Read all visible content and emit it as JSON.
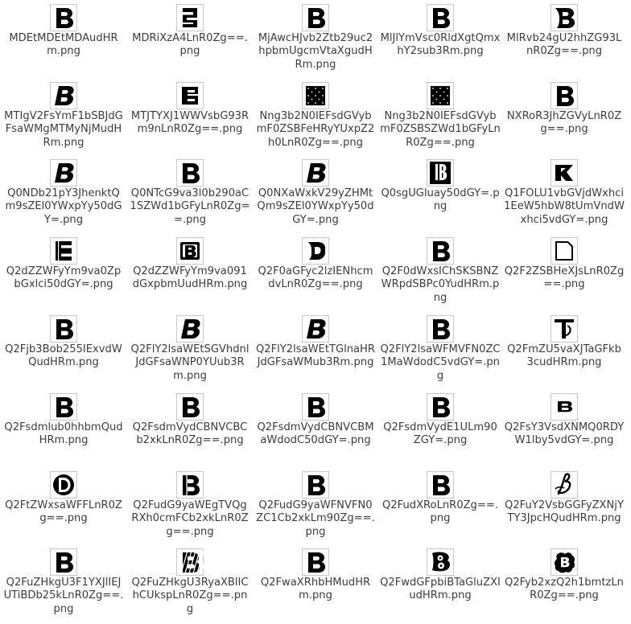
{
  "window": {
    "view": "file-icon-grid"
  },
  "colors": {
    "text": "#3c3c3c",
    "glyph": "#000000",
    "thumb_border": "#c8c8c8",
    "background": "#ffffff"
  },
  "files": [
    {
      "name": "MDEtMDEtMDAudHRm.png",
      "glyph": "block-b-icon"
    },
    {
      "name": "MDRiXzA4LnR0Zg==.png",
      "glyph": "striped-e-icon"
    },
    {
      "name": "MjAwcHJvb2Ztb29uc2hpbmUgcmVtaXgudHRm.png",
      "glyph": "block-b-icon"
    },
    {
      "name": "MlJlYmVsc0RldXgtQmxhY2sub3Rm.png",
      "glyph": "block-b-icon"
    },
    {
      "name": "MlRvb24gU2hhZG93LnR0Zg==.png",
      "glyph": "round-b-icon"
    },
    {
      "name": "MTIgV2FsYmF1bSBJdGFsaWMgMTMyNjMudHRm.png",
      "glyph": "italic-b-icon"
    },
    {
      "name": "MTJTYXJ1WWVsbG93Rm9nLnR0Zg==.png",
      "glyph": "bold-e-icon"
    },
    {
      "name": "Nng3b2N0IEFsdGVybmF0ZSBFeHRyYUxpZ2h0LnR0Zg==.png",
      "glyph": "dotted-square-icon"
    },
    {
      "name": "Nng3b2N0IEFsdGVybmF0ZSBSZWd1bGFyLnR0Zg==.png",
      "glyph": "dotted-square-icon"
    },
    {
      "name": "NXRoR3JhZGVyLnR0Zg==.png",
      "glyph": "block-b-icon"
    },
    {
      "name": "Q0NDb21pY3JhenktQm9sZEl0YWxpYy50dGY=.png",
      "glyph": "italic-b-icon"
    },
    {
      "name": "Q0NTcG9va3l0b290aC1SZWd1bGFyLnR0Zg==.png",
      "glyph": "block-b-icon"
    },
    {
      "name": "Q0NXaWxkV29yZHMtQm9sZEl0YWxpYy50dGY=.png",
      "glyph": "italic-b-icon"
    },
    {
      "name": "Q0sgUGluay50dGY=.png",
      "glyph": "lined-b-icon"
    },
    {
      "name": "Q1FOLU1vbGVjdWxhci1EeW5hbW8tUmVndWxhci5vdGY=.png",
      "glyph": "angular-r-icon"
    },
    {
      "name": "Q2dZZWFyYm9va0ZpbGxlci50dGY=.png",
      "glyph": "block-e-icon"
    },
    {
      "name": "Q2dZZWFyYm9va091dGxpbmUudHRm.png",
      "glyph": "outlined-b-icon"
    },
    {
      "name": "Q2F0aGFyc2lzIENhcmdvLnR0Zg==.png",
      "glyph": "rounded-b-icon"
    },
    {
      "name": "Q2F0dWxsIChSKSBNZWRpdSBPc0YudHRm.png",
      "glyph": "block-b-icon"
    },
    {
      "name": "Q2F2ZSBHeXJsLnR0Zg==.png",
      "glyph": "blank-page-icon"
    },
    {
      "name": "Q2Fjb3Bob255IExvdWQudHRm.png",
      "glyph": "block-b-icon"
    },
    {
      "name": "Q2FlY2lsaWEtSGVhdnlJdGFsaWNP0YUub3Rm.png",
      "glyph": "italic-b-icon"
    },
    {
      "name": "Q2FlY2lsaWEtTGlnaHRJdGFsaWMub3Rm.png",
      "glyph": "italic-b-icon"
    },
    {
      "name": "Q2FlY2lsaWFMVFN0ZC1MaWdodC5vdGY=.png",
      "glyph": "block-b-icon"
    },
    {
      "name": "Q2FmZU5vaXJTaGFkb3cudHRm.png",
      "glyph": "ornate-t-icon"
    },
    {
      "name": "Q2Fsdmlub0hhbmQudHRm.png",
      "glyph": "block-b-icon"
    },
    {
      "name": "Q2FsdmVydCBNVCBCb2xkLnR0Zg==.png",
      "glyph": "block-b-icon"
    },
    {
      "name": "Q2FsdmVydCBNVCBMaWdodC50dGY=.png",
      "glyph": "block-b-icon"
    },
    {
      "name": "Q2FsdmVydE1ULm90ZGY=.png",
      "glyph": "block-b-icon"
    },
    {
      "name": "Q2FsY3VsdXNMQ0RDYW1lby5vdGY=.png",
      "glyph": "flat-b-icon"
    },
    {
      "name": "Q2FtZWxsaWFFLnR0Zg==.png",
      "glyph": "circle-d-icon"
    },
    {
      "name": "Q2FudG9yaWEgTVQgRXh0cmFCb2xkLnR0Zg==.png",
      "glyph": "stencil-b-icon"
    },
    {
      "name": "Q2FudG9yaWFNVFN0ZC1Cb2xkLm90Zg==.png",
      "glyph": "block-b-icon"
    },
    {
      "name": "Q2FudXRoLnR0Zg==.png",
      "glyph": "block-b-icon"
    },
    {
      "name": "Q2FuY2VsbGGFyZXNjYTY3JpcHQudHRm.png",
      "glyph": "script-b-icon"
    },
    {
      "name": "Q2FuZHkgU3F1YXJlIEJUTiBDb25kLnR0Zg==.png",
      "glyph": "block-b-icon"
    },
    {
      "name": "Q2FuZHkgU3RyaXBlIChCUkspLnR0Zg==.png",
      "glyph": "striped-b-icon"
    },
    {
      "name": "Q2FwaXRhbHMudHRm.png",
      "glyph": "block-b-icon"
    },
    {
      "name": "Q2FwdGFpbiBTaGluZXIudHRm.png",
      "glyph": "cartoon-b-icon"
    },
    {
      "name": "Q2Fyb2xzQ2h1bmtzLnR0Zg==.png",
      "glyph": "splat-b-icon"
    }
  ]
}
